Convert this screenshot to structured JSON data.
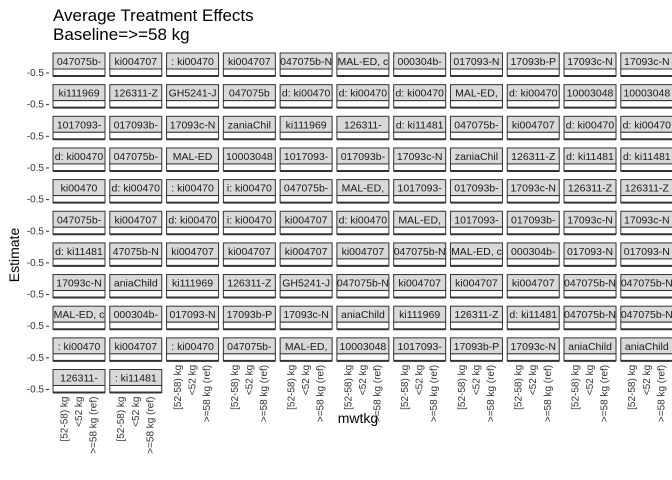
{
  "chart_data": {
    "type": "scatter",
    "title": "Average Treatment Effects\nBaseline=>=58 kg",
    "xlabel": "mwtkg",
    "ylabel": "Estimate",
    "y_tick_label": "-0.5",
    "x_categories": [
      "[52-58) kg",
      "<52 kg",
      ">=58 kg (ref)"
    ],
    "bottom_row_panels": 11,
    "rows": [
      [
        "047075b-",
        "ki004707",
        ": ki00470",
        "ki004707",
        "047075b-N",
        "MAL-ED, c",
        "000304b-",
        "017093-N",
        "17093b-P",
        "17093c-N"
      ],
      [
        "ki111969",
        "126311-Z",
        "GH5241-J",
        "047075b",
        "d: ki00470",
        "d: ki00470",
        "d: ki00470",
        "MAL-ED,",
        "d: ki00470",
        "10003048"
      ],
      [
        "1017093-",
        "017093b-",
        "17093c-N",
        "zaniaChil",
        "ki111969",
        "126311-",
        "d: ki11481",
        "047075b-",
        "ki004707",
        "d: ki00470"
      ],
      [
        "d: ki00470",
        "047075b-",
        "MAL-ED",
        "10003048",
        "1017093-",
        "017093b-",
        "17093c-N",
        "zaniaChil",
        "126311-Z",
        "d: ki11481"
      ],
      [
        "ki00470",
        "d: ki00470",
        ": ki00470",
        "i: ki00470",
        "047075b-",
        "MAL-ED,",
        "1017093-",
        "017093b-",
        "17093c-N",
        "126311-Z"
      ],
      [
        "047075b-",
        "ki004707",
        "d: ki00470",
        "i: ki00470",
        "ki004707",
        "d: ki00470",
        "MAL-ED,",
        "1017093-",
        "017093b-",
        "17093c-N"
      ],
      [
        "d: ki11481",
        "47075b-N",
        "ki004707",
        "ki004707",
        "ki004707",
        "ki004707",
        "047075b-N",
        "MAL-ED, c",
        "000304b-",
        "017093-N"
      ],
      [
        "17093c-N",
        "aniaChild",
        "ki111969",
        "126311-Z",
        "GH5241-J",
        "047075b-N",
        "ki004707",
        "ki004707",
        "ki004707",
        "047075b-N"
      ],
      [
        "MAL-ED, c",
        "000304b-",
        "017093-N",
        "17093b-P",
        "17093c-N",
        "aniaChild",
        "ki111969",
        "126311-Z",
        "d: ki11481",
        "047075b-N"
      ],
      [
        ": ki00470",
        "ki004707",
        ": ki00470",
        "047075b-",
        "MAL-ED,",
        "10003048",
        "1017093-",
        "17093b-P",
        "17093c-N",
        "aniaChild"
      ],
      [
        "126311-",
        ": ki11481"
      ]
    ]
  }
}
